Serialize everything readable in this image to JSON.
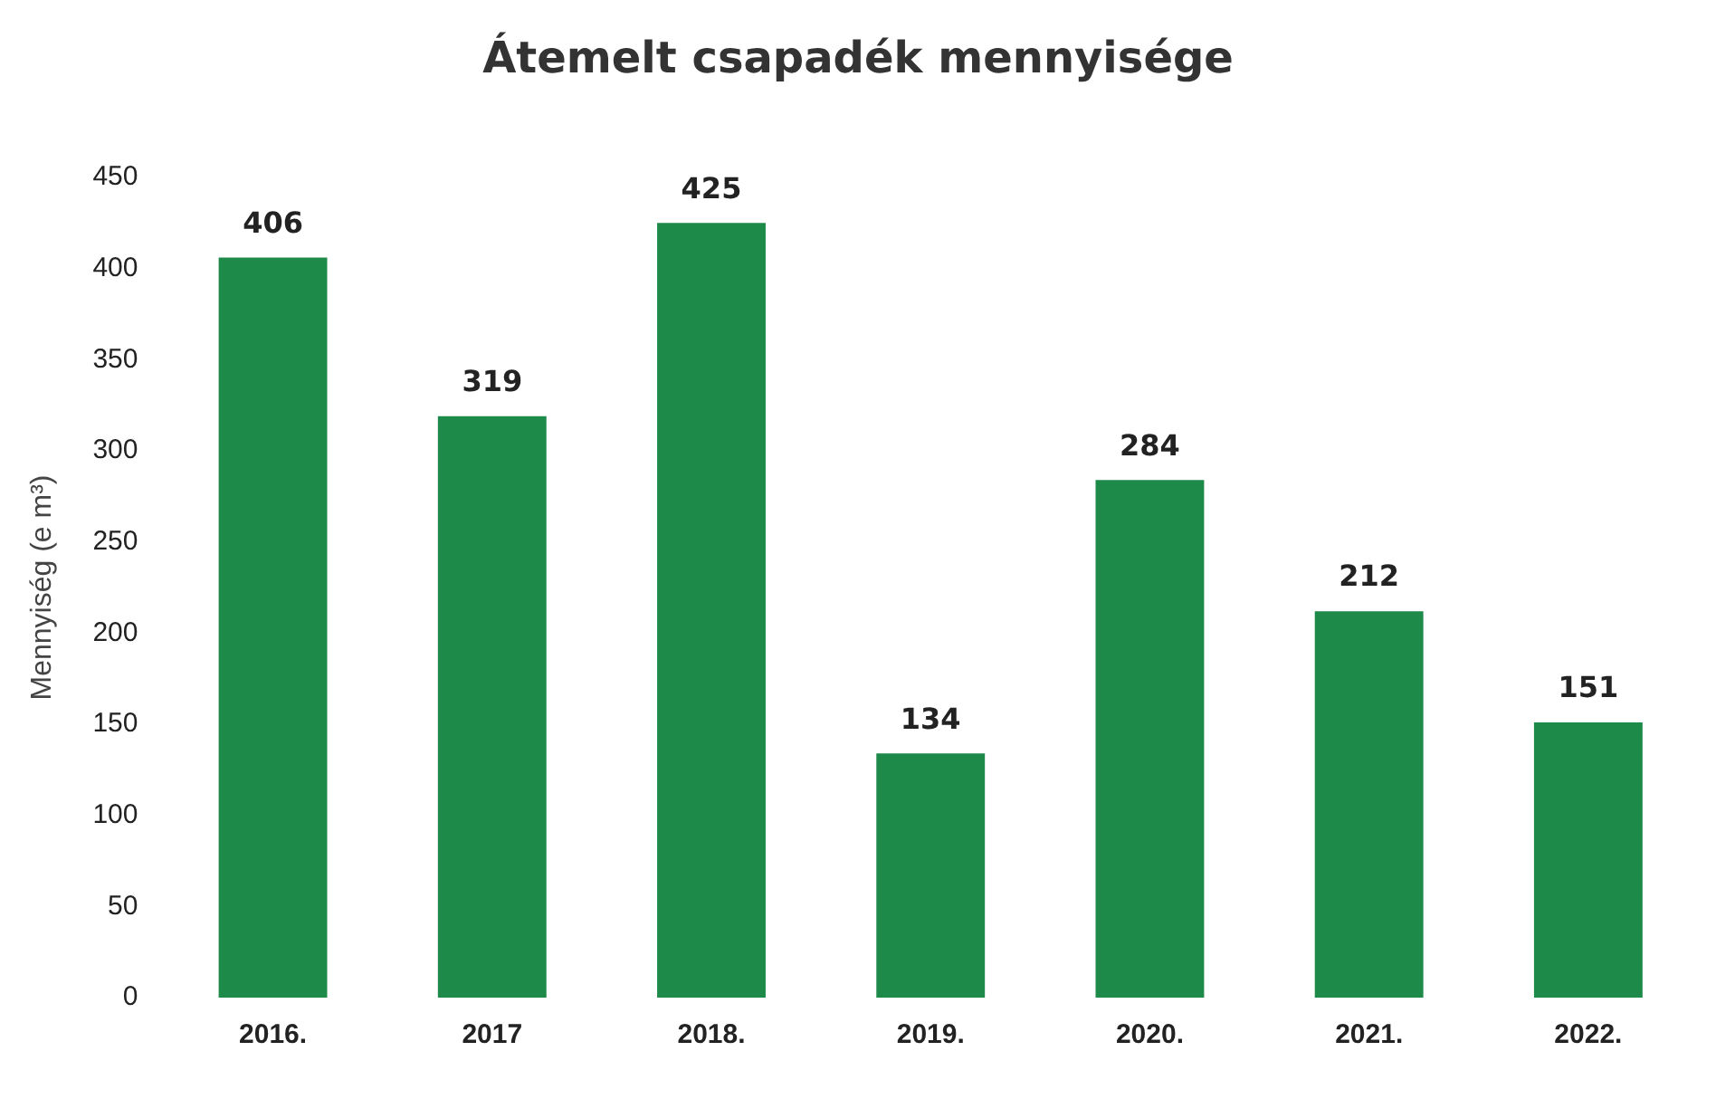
{
  "chart_data": {
    "type": "bar",
    "title": "Átemelt csapadék mennyisége",
    "ylabel": "Mennyiség (e m³)",
    "categories": [
      "2016.",
      "2017",
      "2018.",
      "2019.",
      "2020.",
      "2021.",
      "2022."
    ],
    "values": [
      406,
      319,
      425,
      134,
      284,
      212,
      151
    ],
    "color": "#1e8a4a",
    "ylim": [
      0,
      450
    ],
    "yticks": [
      0,
      50,
      100,
      150,
      200,
      250,
      300,
      350,
      400,
      450
    ],
    "grid": false,
    "legend": false,
    "data_labels": true
  }
}
